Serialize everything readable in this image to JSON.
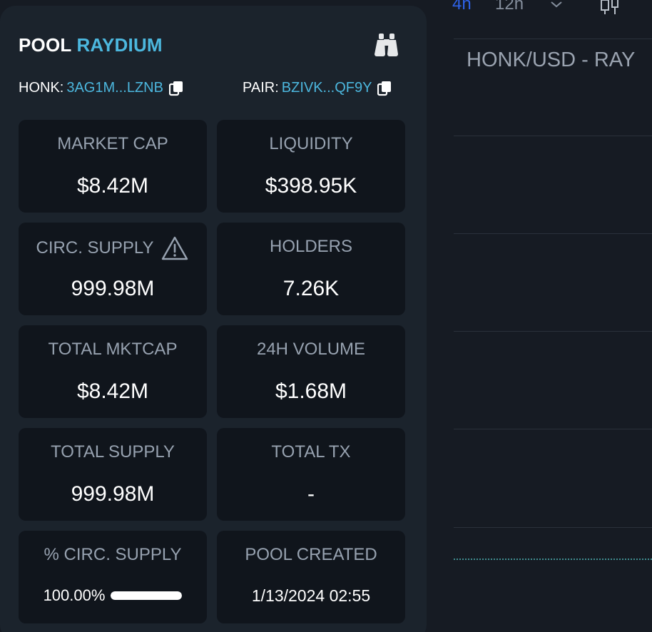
{
  "pool": {
    "prefix": "POOL",
    "dex": "RAYDIUM",
    "token_label": "HONK:",
    "token_address": "3AG1M...LZNB",
    "pair_label": "PAIR:",
    "pair_address": "BZIVK...QF9Y"
  },
  "stats": {
    "market_cap": {
      "label": "MARKET CAP",
      "value": "$8.42M"
    },
    "liquidity": {
      "label": "LIQUIDITY",
      "value": "$398.95K"
    },
    "circ_supply": {
      "label": "CIRC. SUPPLY",
      "value": "999.98M"
    },
    "holders": {
      "label": "HOLDERS",
      "value": "7.26K"
    },
    "total_mktcap": {
      "label": "TOTAL MKTCAP",
      "value": "$8.42M"
    },
    "volume_24h": {
      "label": "24H VOLUME",
      "value": "$1.68M"
    },
    "total_supply": {
      "label": "TOTAL SUPPLY",
      "value": "999.98M"
    },
    "total_tx": {
      "label": "TOTAL TX",
      "value": "-"
    },
    "pct_circ_supply": {
      "label": "% CIRC. SUPPLY",
      "value": "100.00%",
      "fraction": 1.0
    },
    "pool_created": {
      "label": "POOL CREATED",
      "value": "1/13/2024 02:55"
    }
  },
  "chart": {
    "timeframes": [
      "4h",
      "12h"
    ],
    "active_timeframe": "4h",
    "title": "HONK/USD - RAY"
  },
  "colors": {
    "accent": "#4cb7de",
    "active_timeframe": "#2e62e8"
  },
  "icons": {
    "binoculars": "binoculars-icon",
    "copy": "copy-icon",
    "warning": "warning-icon",
    "chevron": "chevron-down-icon",
    "candles": "candlestick-icon"
  }
}
